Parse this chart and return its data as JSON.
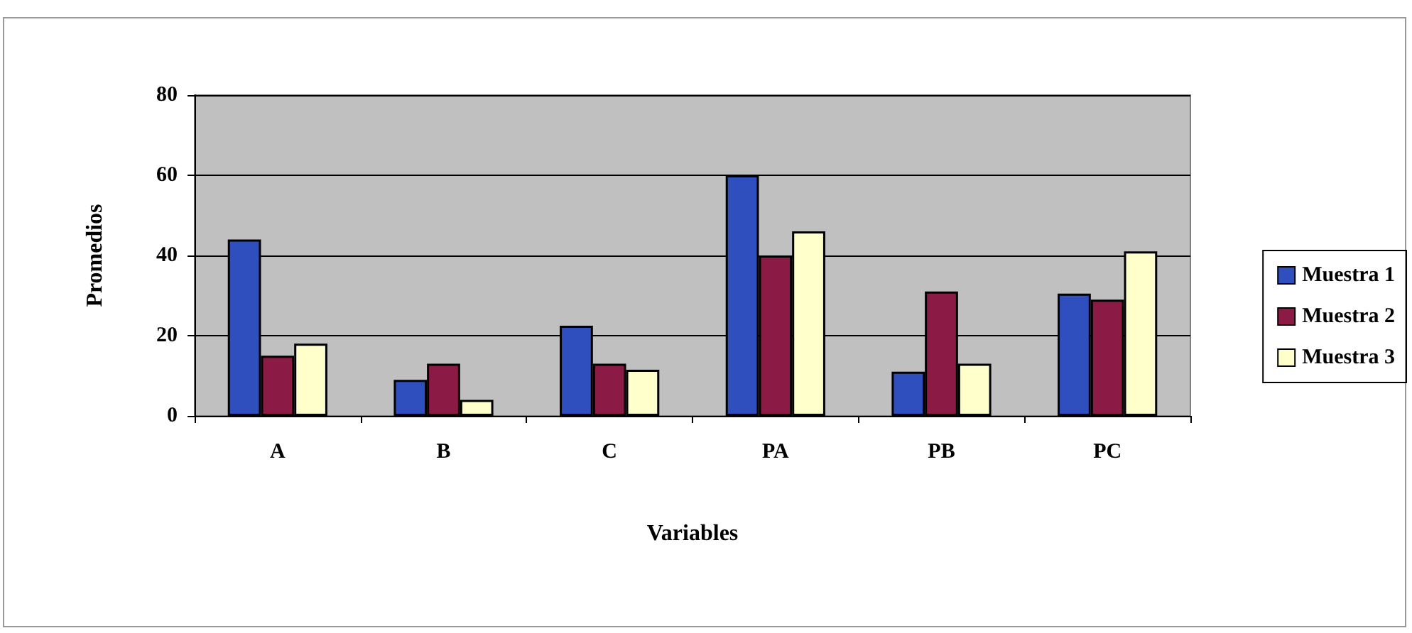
{
  "chart_data": {
    "type": "bar",
    "xlabel": "Variables",
    "ylabel": "Promedios",
    "categories": [
      "A",
      "B",
      "C",
      "PA",
      "PB",
      "PC"
    ],
    "series": [
      {
        "name": "Muestra 1",
        "color": "#2f4fbf",
        "values": [
          44,
          9,
          22.5,
          60,
          11,
          30.5
        ]
      },
      {
        "name": "Muestra 2",
        "color": "#8b1a45",
        "values": [
          15,
          13,
          13,
          40,
          31,
          29
        ]
      },
      {
        "name": "Muestra 3",
        "color": "#ffffcc",
        "values": [
          18,
          4,
          11.5,
          46,
          13,
          41
        ]
      }
    ],
    "ylim": [
      0,
      80
    ],
    "yticks": [
      0,
      20,
      40,
      60,
      80
    ],
    "grid": "y",
    "legend": "right"
  }
}
